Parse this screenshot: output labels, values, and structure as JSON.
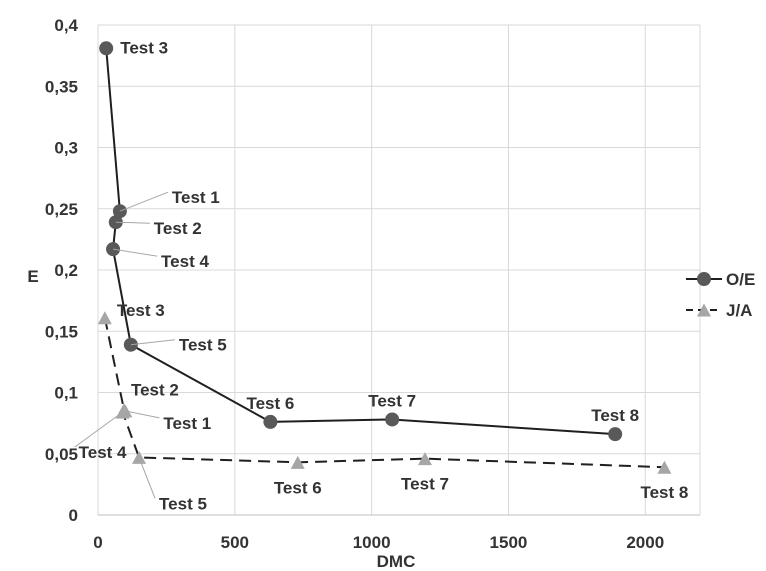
{
  "chart_data": {
    "type": "scatter",
    "title": "",
    "xlabel": "DMC",
    "ylabel": "E",
    "xlim": [
      0,
      2200
    ],
    "ylim": [
      0,
      0.4
    ],
    "x_ticks": [
      0,
      500,
      1000,
      1500,
      2000
    ],
    "y_ticks": [
      0,
      0.05,
      0.1,
      0.15,
      0.2,
      0.25,
      0.3,
      0.35,
      0.4
    ],
    "x_tick_labels": [
      "0",
      "500",
      "1000",
      "1500",
      "2000"
    ],
    "y_tick_labels": [
      "0",
      "0,05",
      "0,1",
      "0,15",
      "0,2",
      "0,25",
      "0,3",
      "0,35",
      "0,4"
    ],
    "grid": "both",
    "legend_position": "right",
    "series": [
      {
        "name": "O/E",
        "marker": "circle",
        "line": "solid",
        "color": "#595959",
        "points": [
          {
            "x": 30,
            "y": 0.381,
            "label": "Test 3"
          },
          {
            "x": 80,
            "y": 0.248,
            "label": "Test 1"
          },
          {
            "x": 65,
            "y": 0.239,
            "label": "Test 2"
          },
          {
            "x": 55,
            "y": 0.217,
            "label": "Test 4"
          },
          {
            "x": 120,
            "y": 0.139,
            "label": "Test 5"
          },
          {
            "x": 630,
            "y": 0.076,
            "label": "Test 6"
          },
          {
            "x": 1075,
            "y": 0.078,
            "label": "Test 7"
          },
          {
            "x": 1890,
            "y": 0.066,
            "label": "Test 8"
          }
        ]
      },
      {
        "name": "J/A",
        "marker": "triangle",
        "line": "dashed",
        "color": "#a6a6a6",
        "points": [
          {
            "x": 25,
            "y": 0.161,
            "label": "Test 3"
          },
          {
            "x": 95,
            "y": 0.086,
            "label": "Test 2"
          },
          {
            "x": 100,
            "y": 0.085,
            "label": "Test 1"
          },
          {
            "x": 90,
            "y": 0.084,
            "label": "Test 4"
          },
          {
            "x": 150,
            "y": 0.047,
            "label": "Test 5"
          },
          {
            "x": 730,
            "y": 0.043,
            "label": "Test 6"
          },
          {
            "x": 1195,
            "y": 0.046,
            "label": "Test 7"
          },
          {
            "x": 2070,
            "y": 0.039,
            "label": "Test 8"
          }
        ]
      }
    ]
  }
}
